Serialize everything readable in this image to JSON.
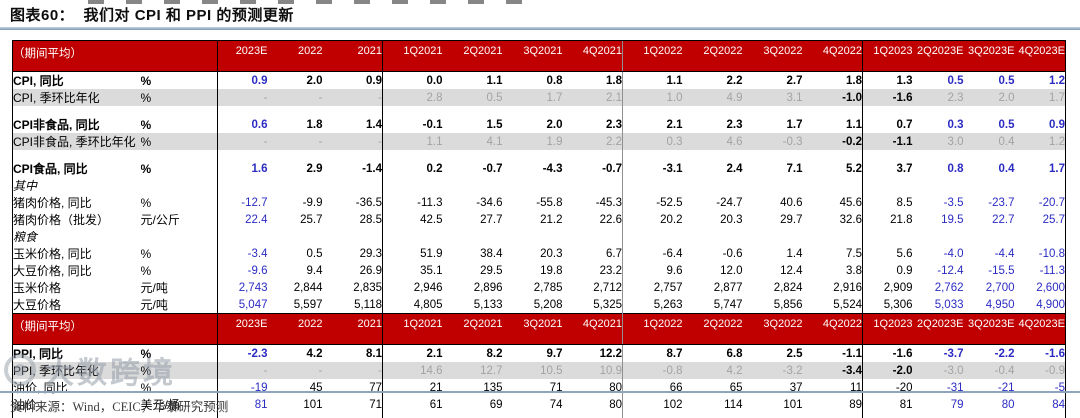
{
  "title": "图表60：  我们对 CPI 和 PPI 的预测更新",
  "footer": {
    "source": "资料来源：Wind，CEIC，华泰研究预测"
  },
  "watermark": {
    "text": "大数跨境"
  },
  "colors": {
    "header_bg": "#C00000",
    "header_text": "#FFFFFF",
    "forecast_blue": "#2B2BC4",
    "muted_gray_text": "#A3A3A3",
    "gray_row_bg": "#DBDBDB",
    "rule_blue": "#7E99B7"
  },
  "table": {
    "corner_label": "（期间平均）",
    "col_headers": [
      "2023E",
      "2022",
      "2021",
      "1Q2021",
      "2Q2021",
      "3Q2021",
      "4Q2021",
      "1Q2022",
      "2Q2022",
      "3Q2022",
      "4Q2022",
      "1Q2023",
      "2Q2023E",
      "3Q2023E",
      "4Q2023E"
    ],
    "sections": [
      {
        "name": "CPI",
        "rows": [
          {
            "type": "bold",
            "label": "CPI, 同比",
            "unit": "%",
            "values": [
              "0.9",
              "2.0",
              "0.9",
              "0.0",
              "1.1",
              "0.8",
              "1.8",
              "1.1",
              "2.2",
              "2.7",
              "1.8",
              "1.3",
              "0.5",
              "0.5",
              "1.2"
            ]
          },
          {
            "type": "gray",
            "label": "CPI, 季环比年化",
            "unit": "%",
            "values": [
              "-",
              "-",
              "-",
              "2.8",
              "0.5",
              "1.7",
              "2.1",
              "1.0",
              "4.9",
              "3.1",
              "-1.0",
              "-1.6",
              "2.3",
              "2.0",
              "1.7"
            ]
          },
          {
            "type": "spacer"
          },
          {
            "type": "bold",
            "label": "CPI非食品, 同比",
            "unit": "%",
            "values": [
              "0.6",
              "1.8",
              "1.4",
              "-0.1",
              "1.5",
              "2.0",
              "2.3",
              "2.1",
              "2.3",
              "1.7",
              "1.1",
              "0.7",
              "0.3",
              "0.5",
              "0.9"
            ]
          },
          {
            "type": "gray",
            "label": "CPI非食品, 季环比年化",
            "unit": "%",
            "values": [
              "-",
              "-",
              "-",
              "1.1",
              "4.1",
              "1.9",
              "2.2",
              "0.3",
              "4.6",
              "-0.3",
              "-0.2",
              "-1.1",
              "3.0",
              "0.4",
              "1.2"
            ]
          },
          {
            "type": "spacer"
          },
          {
            "type": "bold",
            "label": "CPI食品, 同比",
            "unit": "%",
            "values": [
              "1.6",
              "2.9",
              "-1.4",
              "0.2",
              "-0.7",
              "-4.3",
              "-0.7",
              "-3.1",
              "2.4",
              "7.1",
              "5.2",
              "3.7",
              "0.8",
              "0.4",
              "1.7"
            ]
          },
          {
            "type": "subhead",
            "label": "其中"
          },
          {
            "type": "plain",
            "indent": true,
            "label": "猪肉价格, 同比",
            "unit": "%",
            "values": [
              "-12.7",
              "-9.9",
              "-36.5",
              "-11.3",
              "-34.6",
              "-55.8",
              "-45.3",
              "-52.5",
              "-24.7",
              "40.6",
              "45.6",
              "8.5",
              "-3.5",
              "-23.7",
              "-20.7"
            ]
          },
          {
            "type": "plain",
            "indent": true,
            "label": "猪肉价格（批发）",
            "unit": "元/公斤",
            "values": [
              "22.4",
              "25.7",
              "28.5",
              "42.5",
              "27.7",
              "21.2",
              "22.6",
              "20.2",
              "20.3",
              "29.7",
              "32.6",
              "21.8",
              "19.5",
              "22.7",
              "25.7"
            ]
          },
          {
            "type": "subhead",
            "label": "粮食"
          },
          {
            "type": "plain",
            "indent": true,
            "label": "玉米价格, 同比",
            "unit": "%",
            "values": [
              "-3.4",
              "0.5",
              "29.3",
              "51.9",
              "38.4",
              "20.3",
              "6.7",
              "-6.4",
              "-0.6",
              "1.4",
              "7.5",
              "5.6",
              "-4.0",
              "-4.4",
              "-10.8"
            ]
          },
          {
            "type": "plain",
            "indent": true,
            "label": "大豆价格, 同比",
            "unit": "%",
            "values": [
              "-9.6",
              "9.4",
              "26.9",
              "35.1",
              "29.5",
              "19.8",
              "23.2",
              "9.6",
              "12.0",
              "12.4",
              "3.8",
              "0.9",
              "-12.4",
              "-15.5",
              "-11.3"
            ]
          },
          {
            "type": "plain",
            "indent": true,
            "label": "玉米价格",
            "unit": "元/吨",
            "values": [
              "2,743",
              "2,844",
              "2,835",
              "2,946",
              "2,896",
              "2,785",
              "2,712",
              "2,757",
              "2,877",
              "2,824",
              "2,916",
              "2,909",
              "2,762",
              "2,700",
              "2,600"
            ]
          },
          {
            "type": "plain",
            "indent": true,
            "label": "大豆价格",
            "unit": "元/吨",
            "values": [
              "5,047",
              "5,597",
              "5,118",
              "4,805",
              "5,133",
              "5,208",
              "5,325",
              "5,263",
              "5,747",
              "5,856",
              "5,524",
              "5,306",
              "5,033",
              "4,950",
              "4,900"
            ]
          }
        ]
      },
      {
        "name": "PPI",
        "rows": [
          {
            "type": "bold",
            "label": "PPI, 同比",
            "unit": "%",
            "values": [
              "-2.3",
              "4.2",
              "8.1",
              "2.1",
              "8.2",
              "9.7",
              "12.2",
              "8.7",
              "6.8",
              "2.5",
              "-1.1",
              "-1.6",
              "-3.7",
              "-2.2",
              "-1.6"
            ]
          },
          {
            "type": "gray",
            "label": "PPI, 季环比年化",
            "unit": "%",
            "values": [
              "-",
              "-",
              "-",
              "14.6",
              "12.7",
              "10.5",
              "10.9",
              "-0.8",
              "4.2",
              "-3.2",
              "-3.4",
              "-2.0",
              "-3.0",
              "-0.4",
              "-0.9"
            ]
          },
          {
            "type": "plain",
            "indent": true,
            "label": "油价, 同比",
            "unit": "%",
            "values": [
              "-19",
              "45",
              "77",
              "21",
              "135",
              "71",
              "80",
              "66",
              "65",
              "37",
              "11",
              "-20",
              "-31",
              "-21",
              "-5"
            ]
          },
          {
            "type": "plain",
            "indent": true,
            "label": "油价",
            "unit": "美元/桶",
            "values": [
              "81",
              "101",
              "71",
              "61",
              "69",
              "74",
              "80",
              "102",
              "114",
              "101",
              "89",
              "81",
              "79",
              "80",
              "84"
            ]
          },
          {
            "type": "endspacer"
          }
        ]
      }
    ]
  }
}
